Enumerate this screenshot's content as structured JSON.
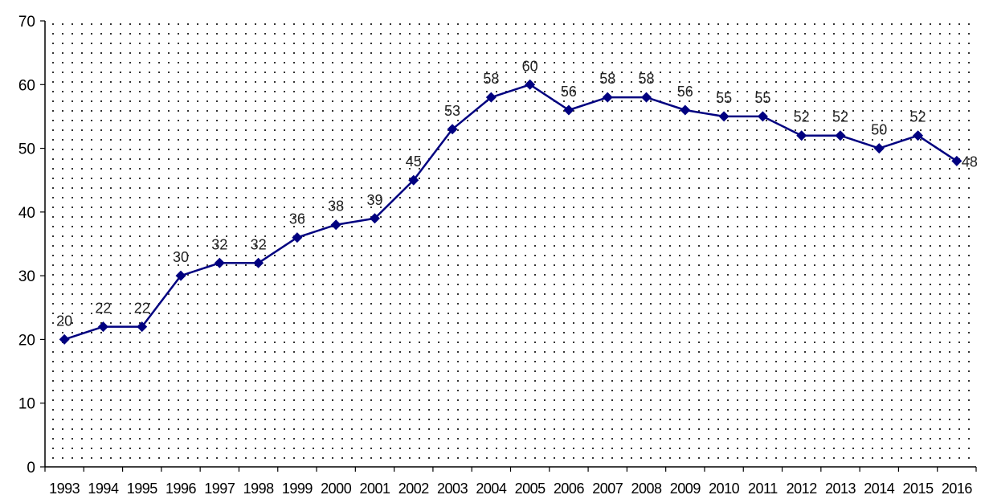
{
  "chart_data": {
    "type": "line",
    "title": "",
    "xlabel": "",
    "ylabel": "",
    "ylim": [
      0,
      70
    ],
    "y_ticks": [
      0,
      10,
      20,
      30,
      40,
      50,
      60,
      70
    ],
    "grid": false,
    "background": "dotted",
    "x": [
      "1993",
      "1994",
      "1995",
      "1996",
      "1997",
      "1998",
      "1999",
      "2000",
      "2001",
      "2002",
      "2003",
      "2004",
      "2005",
      "2006",
      "2007",
      "2008",
      "2009",
      "2010",
      "2011",
      "2012",
      "2013",
      "2014",
      "2015",
      "2016"
    ],
    "series": [
      {
        "values": [
          20,
          22,
          22,
          30,
          32,
          32,
          36,
          38,
          39,
          45,
          53,
          58,
          60,
          56,
          58,
          58,
          56,
          55,
          55,
          52,
          52,
          50,
          52,
          48
        ],
        "color": "#000080",
        "marker": "diamond"
      }
    ]
  }
}
